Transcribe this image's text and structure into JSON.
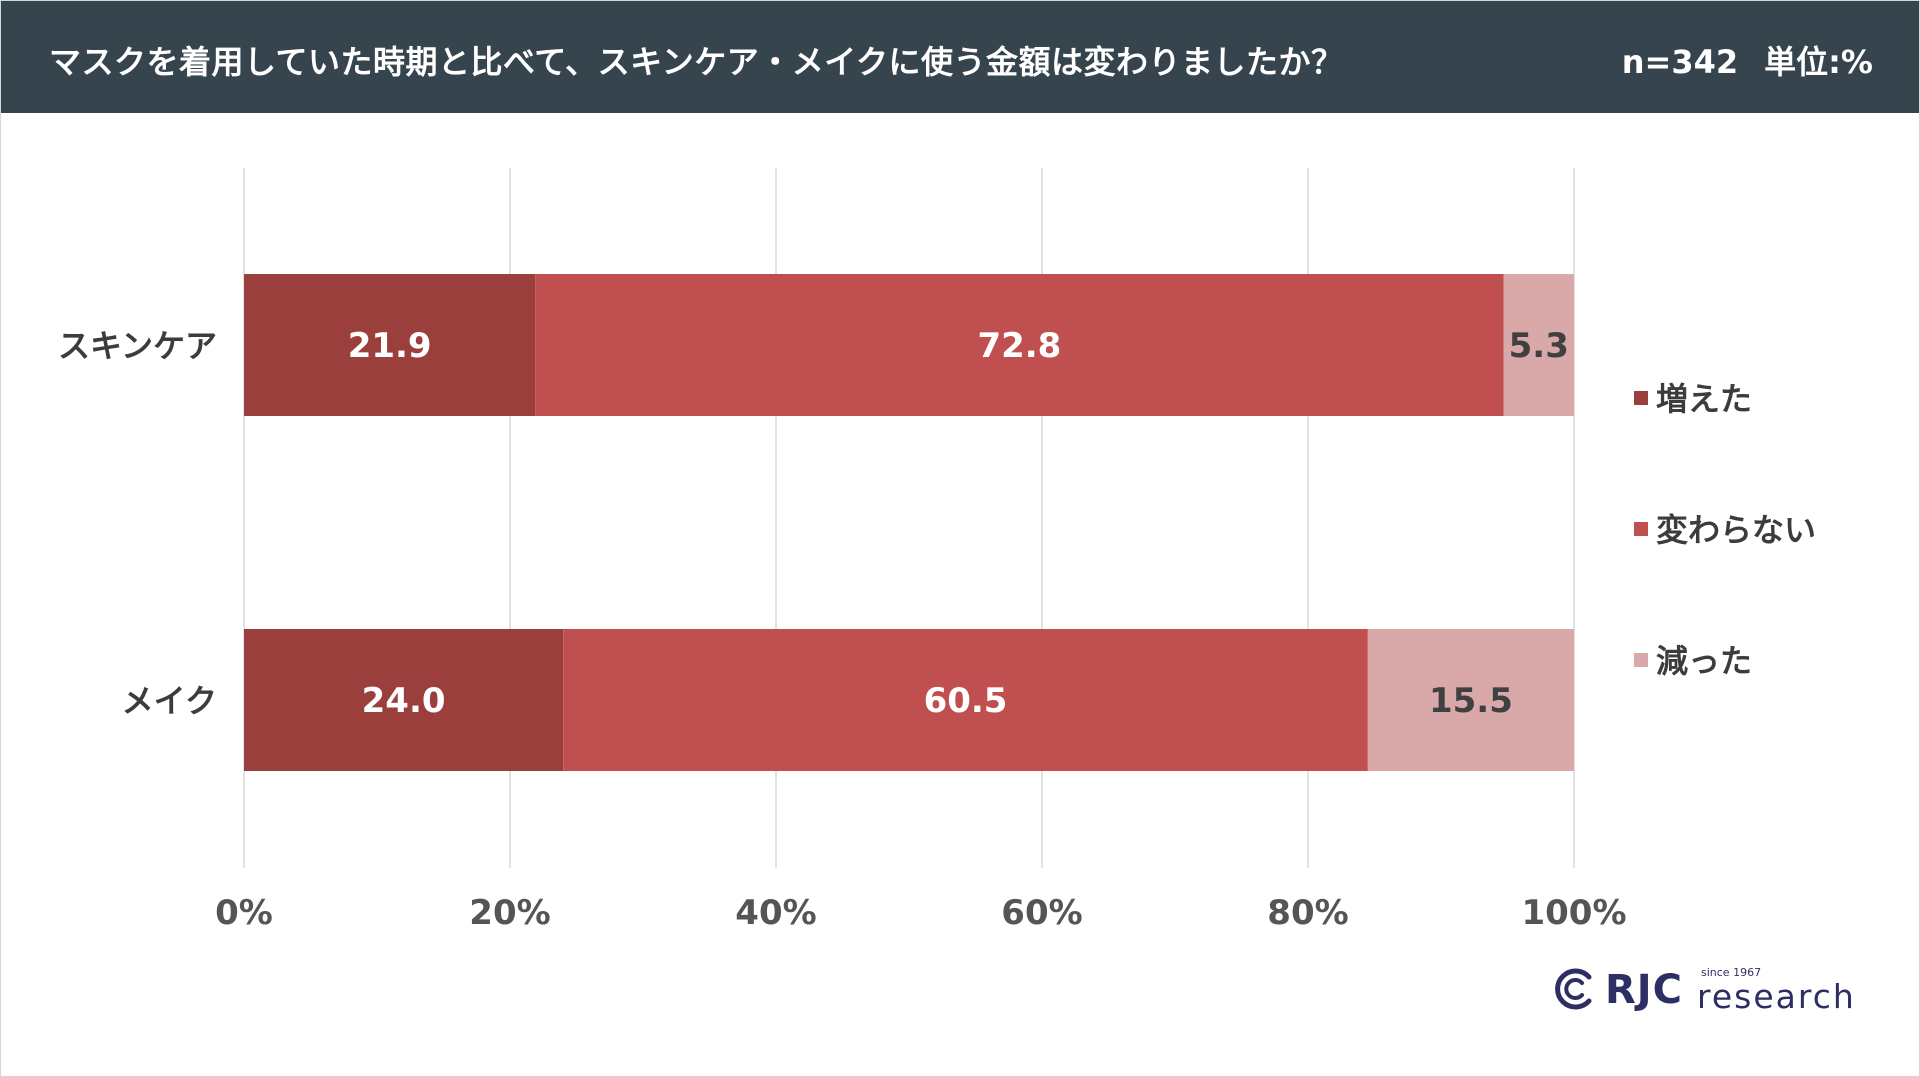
{
  "header": {
    "title": "マスクを着用していた時期と比べて、スキンケア・メイクに使う金額は変わりましたか？",
    "sample": "n=342",
    "unit": "単位:%"
  },
  "colors": {
    "header_bg": "#36444e",
    "increased": "#9b3f3d",
    "unchanged": "#c0504f",
    "decreased": "#d9a8a8",
    "grid": "#d9d9d9",
    "brand": "#2c2e64"
  },
  "chart_data": {
    "type": "bar",
    "orientation": "horizontal",
    "stacked": true,
    "categories": [
      "スキンケア",
      "メイク"
    ],
    "series": [
      {
        "name": "増えた",
        "values": [
          21.9,
          24.0
        ],
        "labels": [
          "21.9",
          "24.0"
        ],
        "color": "#9b3f3d",
        "label_color": "#ffffff"
      },
      {
        "name": "変わらない",
        "values": [
          72.8,
          60.5
        ],
        "labels": [
          "72.8",
          "60.5"
        ],
        "color": "#c0504f",
        "label_color": "#ffffff"
      },
      {
        "name": "減った",
        "values": [
          5.3,
          15.5
        ],
        "labels": [
          "5.3",
          "15.5"
        ],
        "color": "#d9a8a8",
        "label_color": "#404040"
      }
    ],
    "xlim": [
      0,
      100
    ],
    "xticks": [
      0,
      20,
      40,
      60,
      80,
      100
    ],
    "xtick_labels": [
      "0%",
      "20%",
      "40%",
      "60%",
      "80%",
      "100%"
    ],
    "grid": true,
    "legend_position": "right"
  },
  "logo": {
    "mark_icon": "rjc-logo-icon",
    "brand": "RJC",
    "word": "research",
    "since": "since 1967"
  }
}
